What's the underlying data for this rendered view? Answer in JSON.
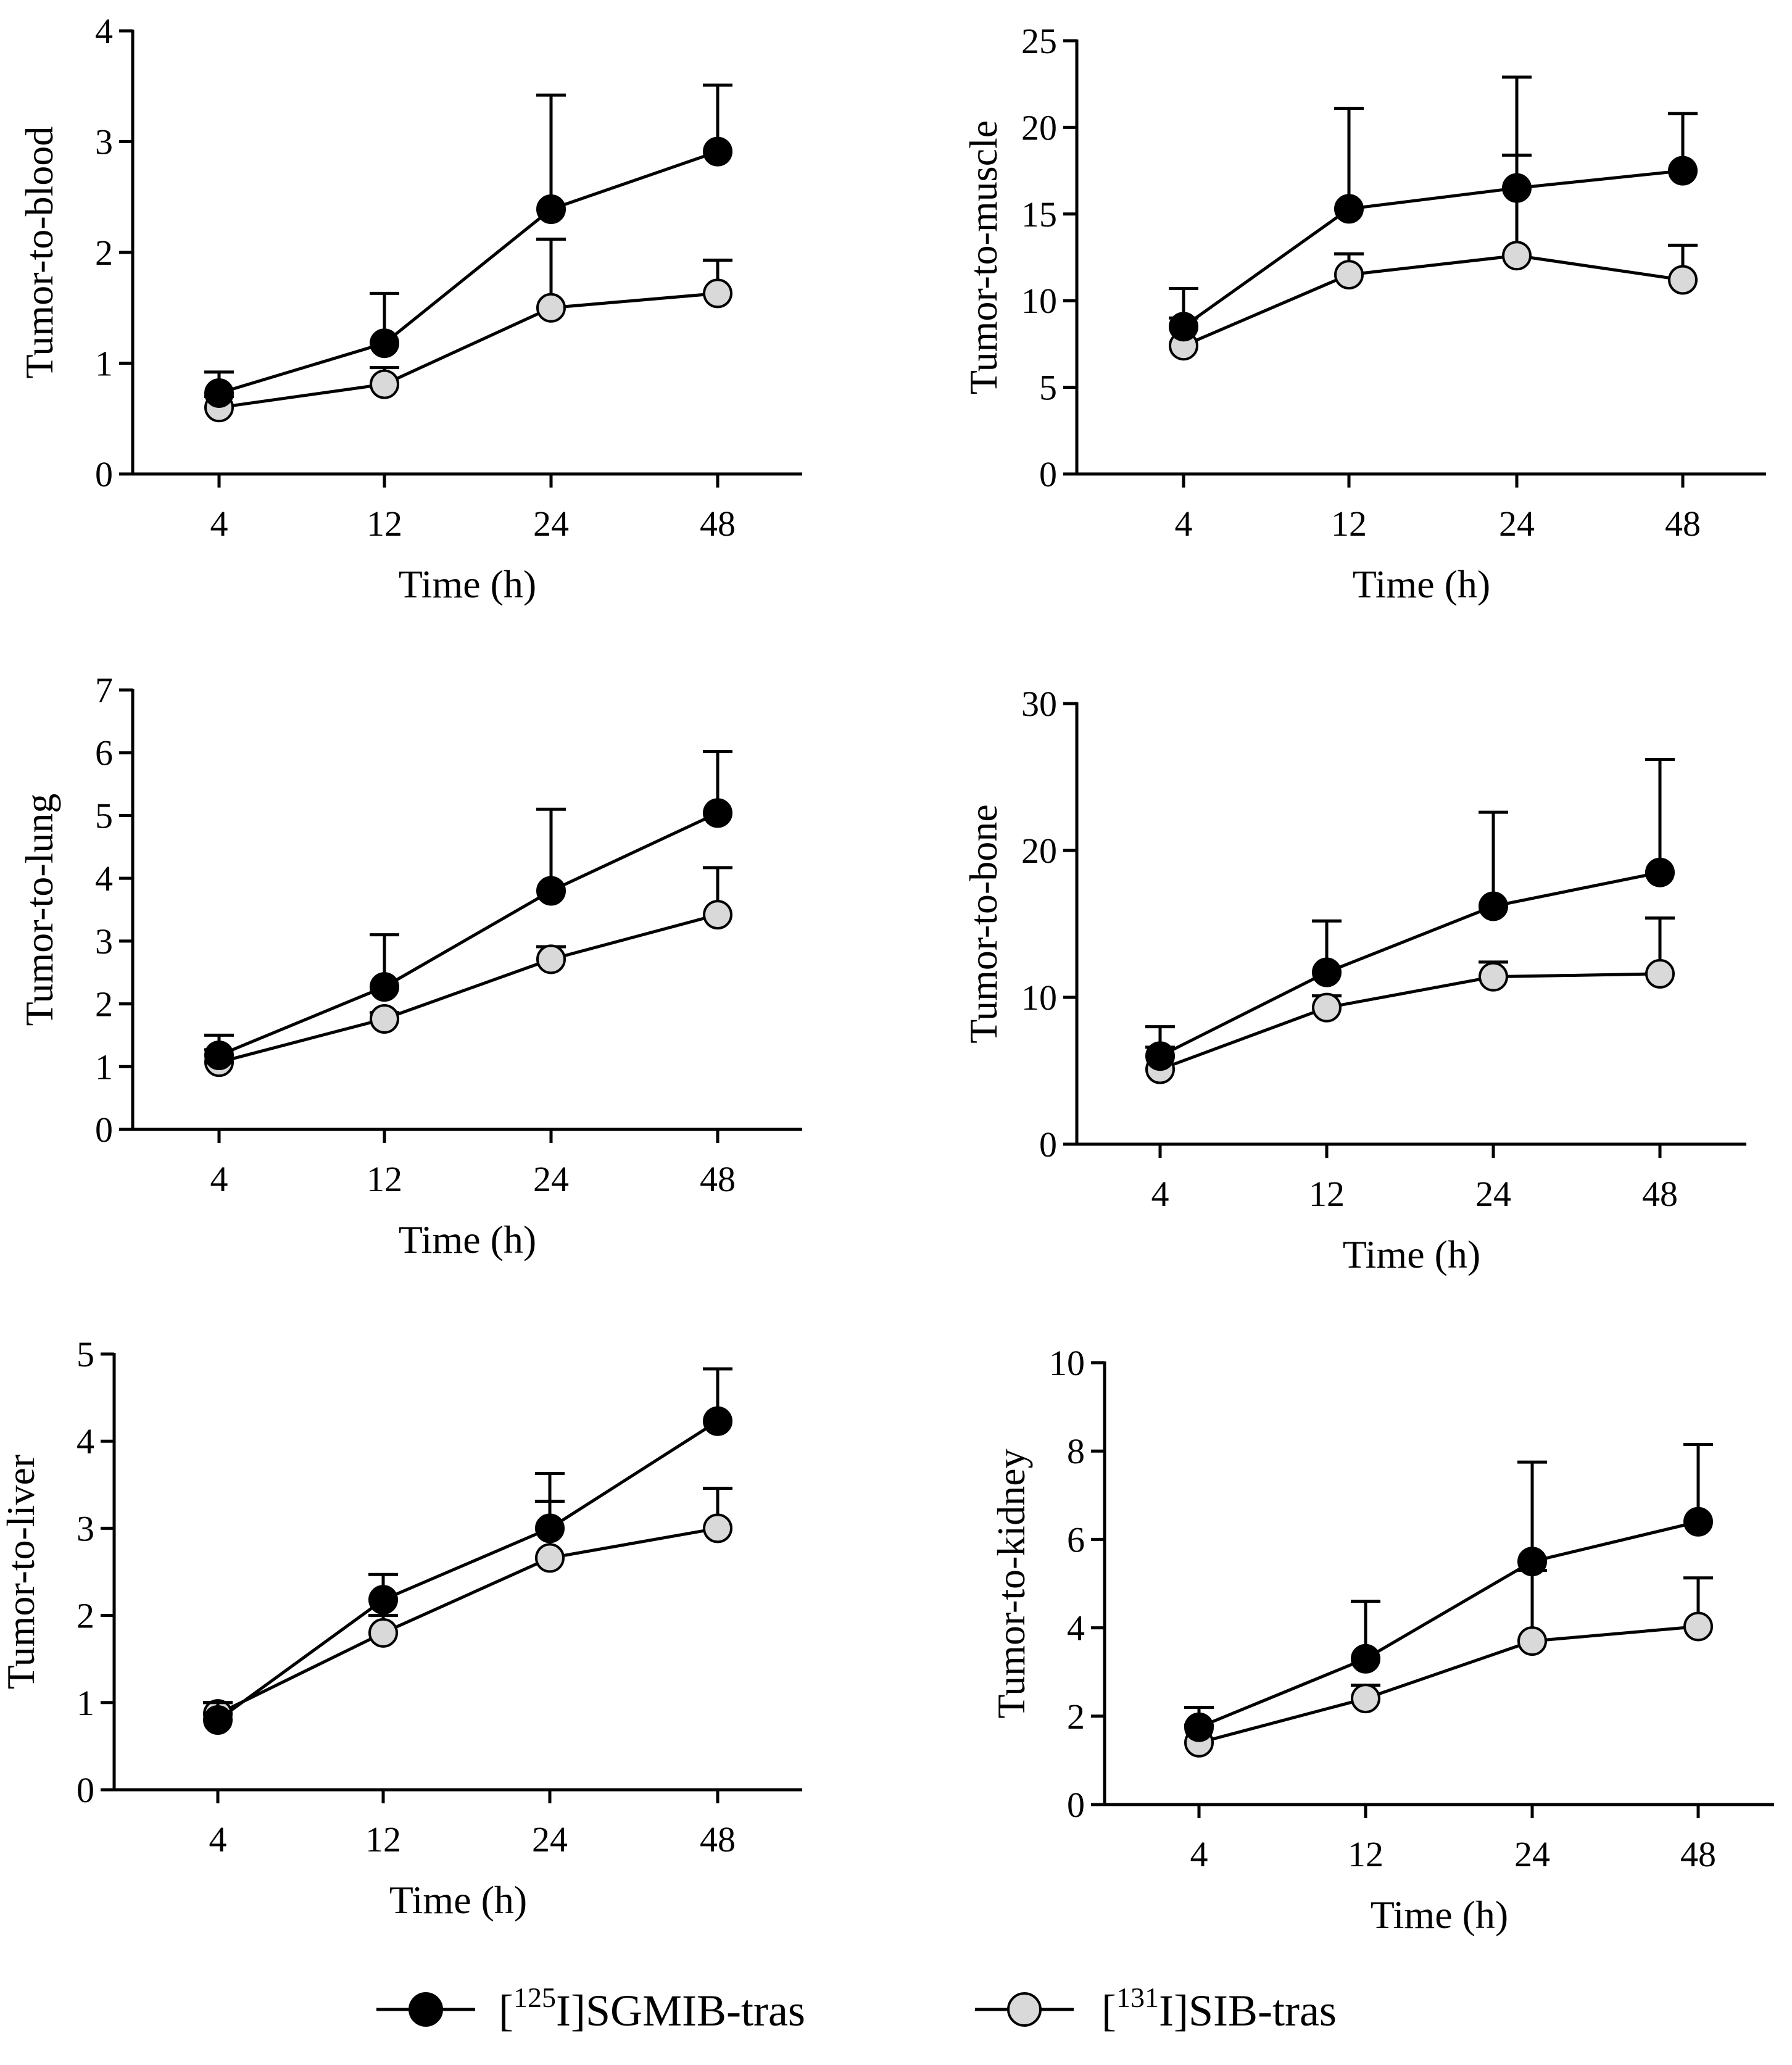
{
  "chart_data": [
    {
      "type": "line",
      "ylabel": "Tumor-to-blood",
      "xlabel": "Time (h)",
      "categories": [
        "4",
        "12",
        "24",
        "48"
      ],
      "ylim": [
        0,
        4
      ],
      "yticks": [
        0,
        1,
        2,
        3,
        4
      ],
      "series": [
        {
          "name": "[125I]SGMIB-tras",
          "values": [
            0.73,
            1.18,
            2.39,
            2.91
          ],
          "error": [
            0.19,
            0.45,
            1.03,
            0.6
          ]
        },
        {
          "name": "[131I]SIB-tras",
          "values": [
            0.6,
            0.81,
            1.5,
            1.63
          ],
          "error": [
            0.1,
            0.15,
            0.62,
            0.3
          ]
        }
      ]
    },
    {
      "type": "line",
      "ylabel": "Tumor-to-muscle",
      "xlabel": "Time (h)",
      "categories": [
        "4",
        "12",
        "24",
        "48"
      ],
      "ylim": [
        0,
        25
      ],
      "yticks": [
        0,
        5,
        10,
        15,
        20,
        25
      ],
      "series": [
        {
          "name": "[125I]SGMIB-tras",
          "values": [
            8.5,
            15.3,
            16.5,
            17.5
          ],
          "error": [
            2.2,
            5.8,
            6.4,
            3.3
          ]
        },
        {
          "name": "[131I]SIB-tras",
          "values": [
            7.4,
            11.5,
            12.6,
            11.2
          ],
          "error": [
            1.6,
            1.2,
            5.8,
            2.0
          ]
        }
      ]
    },
    {
      "type": "line",
      "ylabel": "Tumor-to-lung",
      "xlabel": "Time (h)",
      "categories": [
        "4",
        "12",
        "24",
        "48"
      ],
      "ylim": [
        0,
        7
      ],
      "yticks": [
        0,
        1,
        2,
        3,
        4,
        5,
        6,
        7
      ],
      "series": [
        {
          "name": "[125I]SGMIB-tras",
          "values": [
            1.18,
            2.27,
            3.8,
            5.04
          ],
          "error": [
            0.32,
            0.83,
            1.3,
            0.98
          ]
        },
        {
          "name": "[131I]SIB-tras",
          "values": [
            1.07,
            1.76,
            2.71,
            3.42
          ],
          "error": [
            0.2,
            0.1,
            0.2,
            0.75
          ]
        }
      ]
    },
    {
      "type": "line",
      "ylabel": "Tumor-to-bone",
      "xlabel": "Time (h)",
      "categories": [
        "4",
        "12",
        "24",
        "48"
      ],
      "ylim": [
        0,
        30
      ],
      "yticks": [
        0,
        10,
        20,
        30
      ],
      "series": [
        {
          "name": "[125I]SGMIB-tras",
          "values": [
            6.0,
            11.7,
            16.2,
            18.5
          ],
          "error": [
            2.0,
            3.5,
            6.4,
            7.7
          ]
        },
        {
          "name": "[131I]SIB-tras",
          "values": [
            5.1,
            9.3,
            11.4,
            11.6
          ],
          "error": [
            1.5,
            0.8,
            1.0,
            3.8
          ]
        }
      ]
    },
    {
      "type": "line",
      "ylabel": "Tumor-to-liver",
      "xlabel": "Time (h)",
      "categories": [
        "4",
        "12",
        "24",
        "48"
      ],
      "ylim": [
        0,
        5
      ],
      "yticks": [
        0,
        1,
        2,
        3,
        4,
        5
      ],
      "series": [
        {
          "name": "[125I]SGMIB-tras",
          "values": [
            0.8,
            2.18,
            3.0,
            4.23
          ],
          "error": [
            0.2,
            0.29,
            0.63,
            0.6
          ]
        },
        {
          "name": "[131I]SIB-tras",
          "values": [
            0.87,
            1.8,
            2.66,
            3.0
          ],
          "error": [
            0.13,
            0.2,
            0.65,
            0.46
          ]
        }
      ]
    },
    {
      "type": "line",
      "ylabel": "Tumor-to-kidney",
      "xlabel": "Time (h)",
      "categories": [
        "4",
        "12",
        "24",
        "48"
      ],
      "ylim": [
        0,
        10
      ],
      "yticks": [
        0,
        2,
        4,
        6,
        8,
        10
      ],
      "series": [
        {
          "name": "[125I]SGMIB-tras",
          "values": [
            1.75,
            3.3,
            5.5,
            6.4
          ],
          "error": [
            0.45,
            1.3,
            2.25,
            1.75
          ]
        },
        {
          "name": "[131I]SIB-tras",
          "values": [
            1.4,
            2.4,
            3.7,
            4.03
          ],
          "error": [
            0.4,
            0.3,
            1.6,
            1.1
          ]
        }
      ]
    }
  ],
  "legend": {
    "items": [
      {
        "name": "[125I]SGMIB-tras",
        "prefix": "[",
        "sup": "125",
        "suffix": "I]SGMIB-tras",
        "marker_fill": "#000000"
      },
      {
        "name": "[131I]SIB-tras",
        "prefix": "[",
        "sup": "131",
        "suffix": "I]SIB-tras",
        "marker_fill": "#d9d9d9"
      }
    ]
  },
  "colors": {
    "line": "#000000",
    "series_125_fill": "#000000",
    "series_131_fill": "#d9d9d9"
  }
}
